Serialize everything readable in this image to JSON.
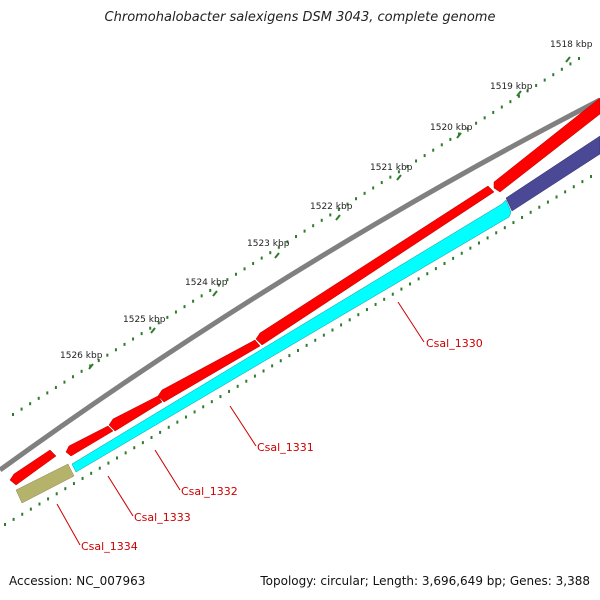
{
  "title": "Chromohalobacter salexigens DSM 3043, complete genome",
  "accession": "Accession: NC_007963",
  "topology": "Topology: circular; Length: 3,696,649 bp; Genes: 3,388",
  "ticks": [
    "1518 kbp",
    "1519 kbp",
    "1520 kbp",
    "1521 kbp",
    "1522 kbp",
    "1523 kbp",
    "1524 kbp",
    "1525 kbp",
    "1526 kbp"
  ],
  "genes": [
    {
      "name": "Csal_1330",
      "color": "#00ffff"
    },
    {
      "name": "Csal_1331",
      "color": "#00ffff"
    },
    {
      "name": "Csal_1332",
      "color": "#00ffff"
    },
    {
      "name": "Csal_1333",
      "color": "#ff0000"
    },
    {
      "name": "Csal_1334",
      "color": "#b5b36b"
    }
  ],
  "colors": {
    "backbone": "#808080",
    "forward_strand": "#ff0000",
    "reverse_strand_cds": "#00ffff",
    "reverse_strand_other": "#4b4896",
    "reverse_strand_pseudo": "#b5b36b",
    "tick": "#008000",
    "label": "#cc0000"
  }
}
